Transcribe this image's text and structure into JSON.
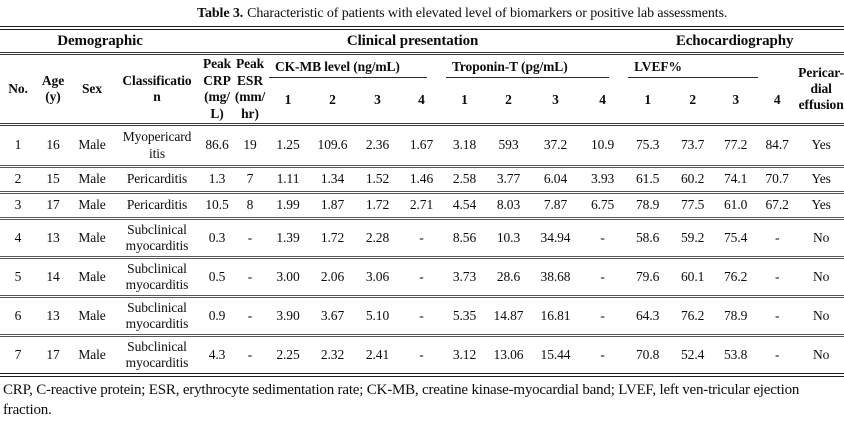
{
  "caption": {
    "label": "Table 3.",
    "text": "Characteristic of patients with elevated level of biomarkers or positive lab assessments."
  },
  "table": {
    "groups": [
      {
        "label": "Demographic"
      },
      {
        "label": "Clinical presentation"
      },
      {
        "label": "Echocardiography"
      }
    ],
    "headers": {
      "no": "No.",
      "age": "Age\n(y)",
      "sex": "Sex",
      "classification": "Classificatio\nn",
      "peak_crp": "Peak\nCRP\n(mg/\nL)",
      "peak_esr": "Peak\nESR\n(mm/\nhr)",
      "ckmb": "CK-MB level (ng/mL)",
      "troponin": "Troponin-T (pg/mL)",
      "lvef": "LVEF%",
      "pericardial": "Pericar-\ndial\neffusion",
      "measurements": [
        "1",
        "2",
        "3",
        "4"
      ]
    },
    "rows": [
      [
        "1",
        "16",
        "Male",
        "Myopericard\nitis",
        "86.6",
        "19",
        "1.25",
        "109.6",
        "2.36",
        "1.67",
        "3.18",
        "593",
        "37.2",
        "10.9",
        "75.3",
        "73.7",
        "77.2",
        "84.7",
        "Yes"
      ],
      [
        "2",
        "15",
        "Male",
        "Pericarditis",
        "1.3",
        "7",
        "1.11",
        "1.34",
        "1.52",
        "1.46",
        "2.58",
        "3.77",
        "6.04",
        "3.93",
        "61.5",
        "60.2",
        "74.1",
        "70.7",
        "Yes"
      ],
      [
        "3",
        "17",
        "Male",
        "Pericarditis",
        "10.5",
        "8",
        "1.99",
        "1.87",
        "1.72",
        "2.71",
        "4.54",
        "8.03",
        "7.87",
        "6.75",
        "78.9",
        "77.5",
        "61.0",
        "67.2",
        "Yes"
      ],
      [
        "4",
        "13",
        "Male",
        "Subclinical\nmyocarditis",
        "0.3",
        "-",
        "1.39",
        "1.72",
        "2.28",
        "-",
        "8.56",
        "10.3",
        "34.94",
        "-",
        "58.6",
        "59.2",
        "75.4",
        "-",
        "No"
      ],
      [
        "5",
        "14",
        "Male",
        "Subclinical\nmyocarditis",
        "0.5",
        "-",
        "3.00",
        "2.06",
        "3.06",
        "-",
        "3.73",
        "28.6",
        "38.68",
        "-",
        "79.6",
        "60.1",
        "76.2",
        "-",
        "No"
      ],
      [
        "6",
        "13",
        "Male",
        "Subclinical\nmyocarditis",
        "0.9",
        "-",
        "3.90",
        "3.67",
        "5.10",
        "-",
        "5.35",
        "14.87",
        "16.81",
        "-",
        "64.3",
        "76.2",
        "78.9",
        "-",
        "No"
      ],
      [
        "7",
        "17",
        "Male",
        "Subclinical\nmyocarditis",
        "4.3",
        "-",
        "2.25",
        "2.32",
        "2.41",
        "-",
        "3.12",
        "13.06",
        "15.44",
        "-",
        "70.8",
        "52.4",
        "53.8",
        "-",
        "No"
      ]
    ]
  },
  "footnote": "CRP, C-reactive protein; ESR, erythrocyte sedimentation rate; CK-MB, creatine kinase-myocardial band; LVEF, left ven-tricular ejection fraction."
}
